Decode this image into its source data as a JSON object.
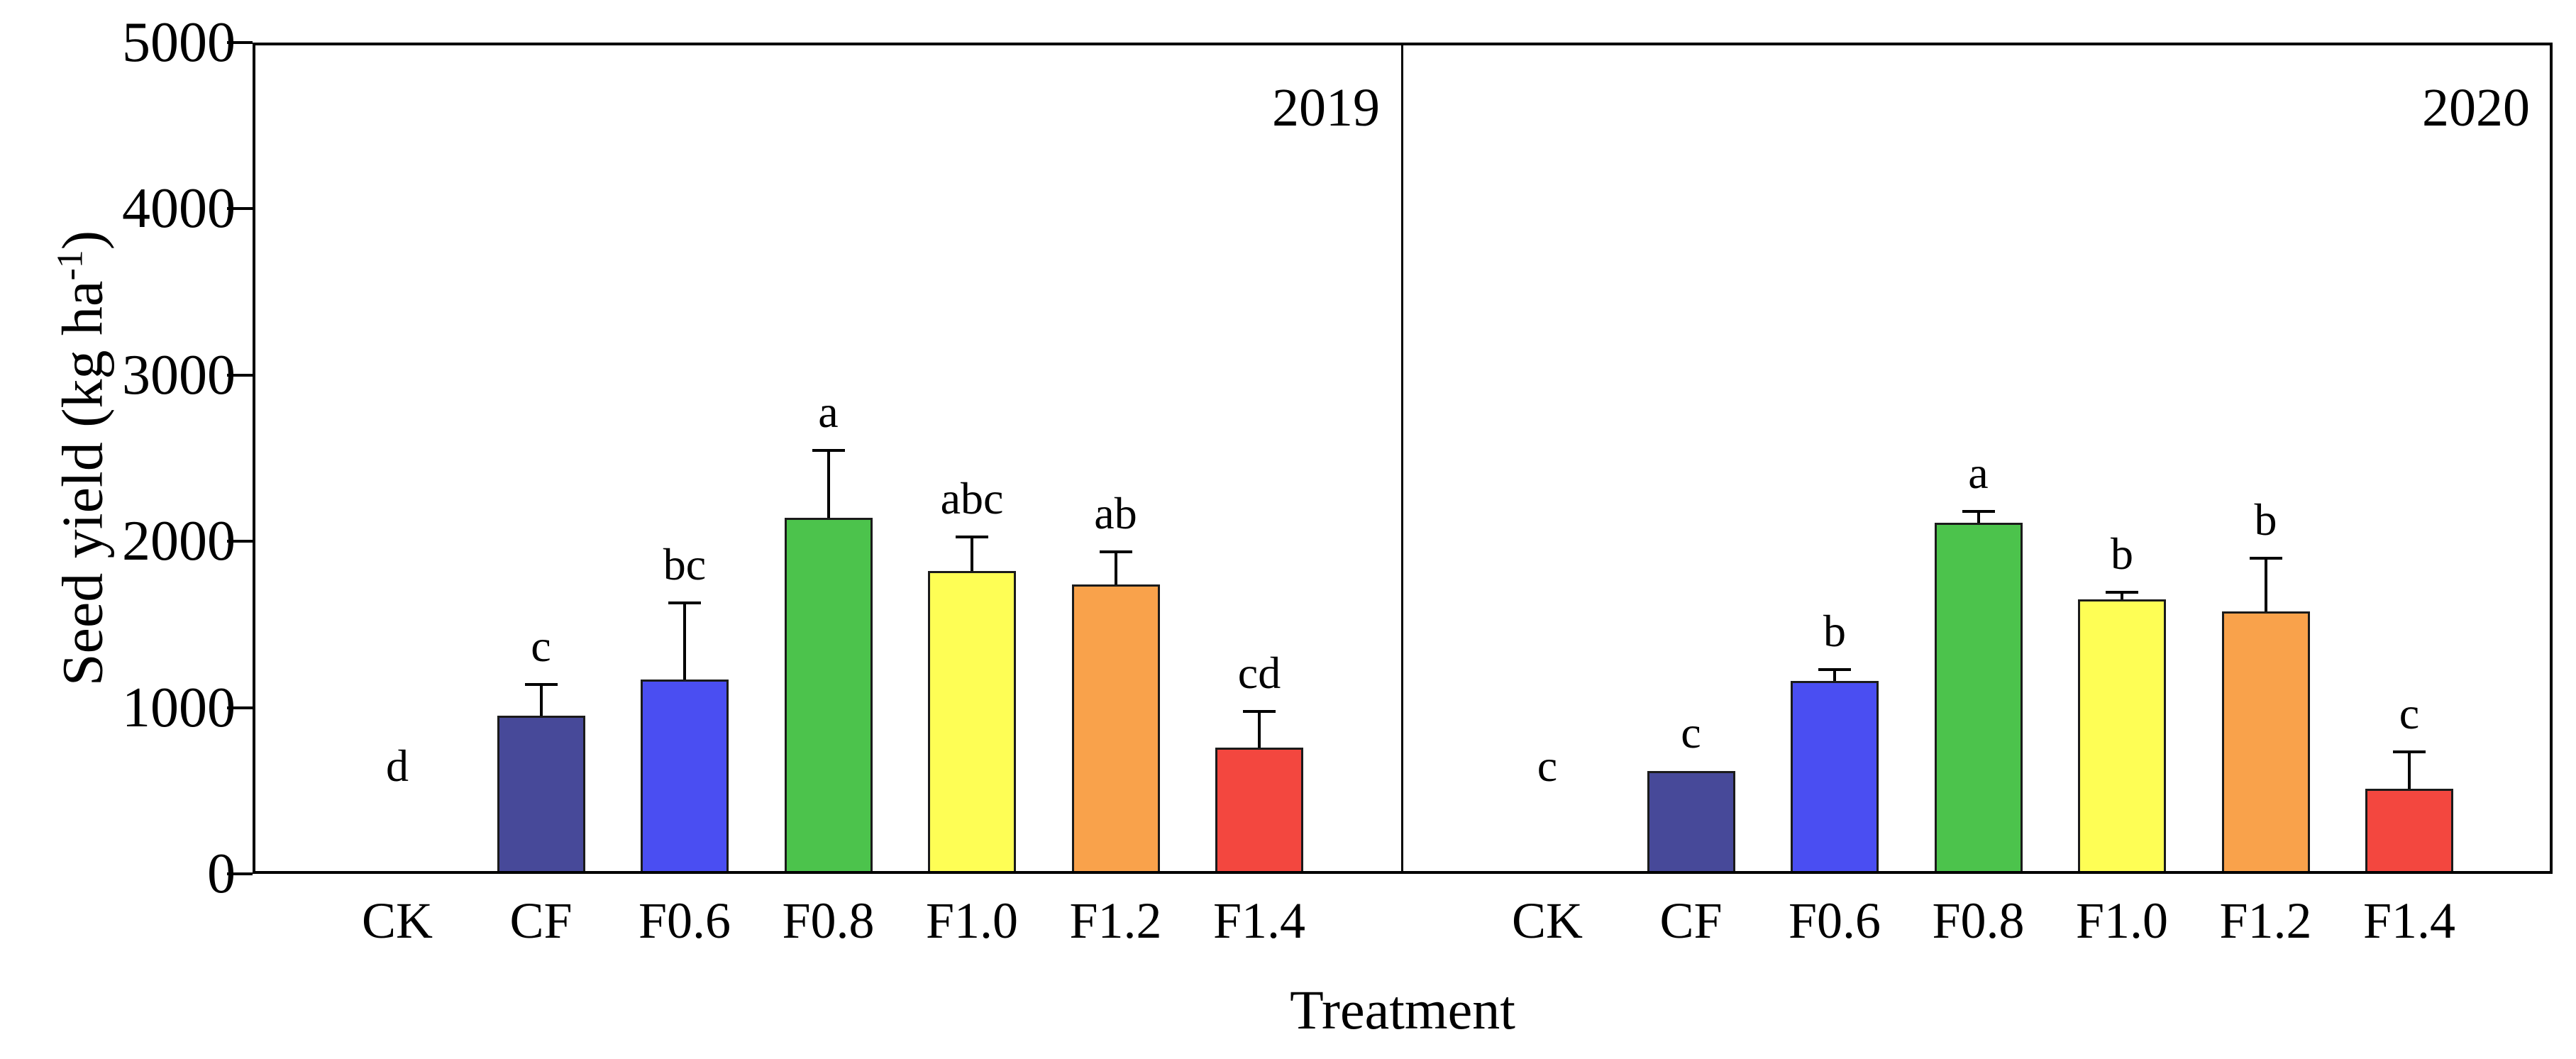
{
  "figure": {
    "y_axis": {
      "title_prefix": "Seed yield (kg ha",
      "title_sup": "-1",
      "title_suffix": ")",
      "min": 0,
      "max": 5000,
      "tick_step": 1000,
      "ticks": [
        "0",
        "1000",
        "2000",
        "3000",
        "4000",
        "5000"
      ]
    },
    "x_axis": {
      "title": "Treatment",
      "categories": [
        "CK",
        "CF",
        "F0.6",
        "F0.8",
        "F1.0",
        "F1.2",
        "F1.4"
      ]
    },
    "bar_colors": [
      "#FFFFFF",
      "#474999",
      "#4A4EF2",
      "#4CC34C",
      "#FEFE55",
      "#F9A24B",
      "#F3473F"
    ],
    "bar_edge_color": "#1B1B1B",
    "error_bar_color": "#000000"
  },
  "chart_data": [
    {
      "type": "bar",
      "title": "2019",
      "xlabel": "Treatment",
      "ylabel": "Seed yield (kg ha-1)",
      "ylim": [
        0,
        5000
      ],
      "grid": false,
      "categories": [
        "CK",
        "CF",
        "F0.6",
        "F0.8",
        "F1.0",
        "F1.2",
        "F1.4"
      ],
      "values": [
        0,
        950,
        1170,
        2140,
        1820,
        1740,
        760
      ],
      "error_top": [
        null,
        1140,
        1630,
        2545,
        2025,
        1935,
        975
      ],
      "sig_letters": [
        "d",
        "c",
        "bc",
        "a",
        "abc",
        "ab",
        "cd"
      ],
      "letter_anchor": [
        420,
        1140,
        1630,
        2545,
        2025,
        1935,
        975
      ]
    },
    {
      "type": "bar",
      "title": "2020",
      "xlabel": "Treatment",
      "ylabel": "Seed yield (kg ha-1)",
      "ylim": [
        0,
        5000
      ],
      "grid": false,
      "categories": [
        "CK",
        "CF",
        "F0.6",
        "F0.8",
        "F1.0",
        "F1.2",
        "F1.4"
      ],
      "values": [
        0,
        620,
        1160,
        2110,
        1650,
        1580,
        510
      ],
      "error_top": [
        null,
        null,
        1230,
        2180,
        1695,
        1900,
        735
      ],
      "sig_letters": [
        "c",
        "c",
        "b",
        "a",
        "b",
        "b",
        "c"
      ],
      "letter_anchor": [
        420,
        620,
        1230,
        2180,
        1695,
        1900,
        735
      ]
    }
  ]
}
